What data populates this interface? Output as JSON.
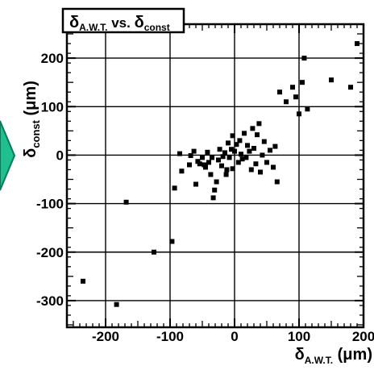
{
  "chart_data": {
    "type": "scatter",
    "title": {
      "main": "δ",
      "main_sub": "A.W.T.",
      "mid": " vs. ",
      "tail": "δ",
      "tail_sub": "const"
    },
    "xlabel": {
      "sym": "δ",
      "sub": "A.W.T.",
      "unit": " (μm)"
    },
    "ylabel": {
      "sym": "δ",
      "sub": "const",
      "unit": " (μm)"
    },
    "xlim": [
      -260,
      200
    ],
    "ylim": [
      -355,
      270
    ],
    "x_ticks": [
      "-200",
      "-100",
      "0",
      "100",
      "200"
    ],
    "x_tick_values": [
      -200,
      -100,
      0,
      100,
      200
    ],
    "y_ticks": [
      "200",
      "100",
      "0",
      "-100",
      "-200",
      "-300"
    ],
    "y_tick_values": [
      200,
      100,
      0,
      -100,
      -200,
      -300
    ],
    "grid": true,
    "legend": "none",
    "marker_color": "#000000",
    "points": [
      [
        -235,
        -260
      ],
      [
        -183,
        -308
      ],
      [
        -168,
        -97
      ],
      [
        -125,
        -200
      ],
      [
        -97,
        -178
      ],
      [
        -93,
        -68
      ],
      [
        -82,
        -33
      ],
      [
        -85,
        3
      ],
      [
        -70,
        -20
      ],
      [
        -68,
        -1
      ],
      [
        -63,
        8
      ],
      [
        -60,
        -60
      ],
      [
        -57,
        -13
      ],
      [
        -54,
        -18
      ],
      [
        -50,
        -5
      ],
      [
        -45,
        -25
      ],
      [
        -42,
        6
      ],
      [
        -40,
        -15
      ],
      [
        -37,
        -40
      ],
      [
        -35,
        -5
      ],
      [
        -33,
        -88
      ],
      [
        -31,
        -72
      ],
      [
        -28,
        -55
      ],
      [
        -25,
        -10
      ],
      [
        -23,
        12
      ],
      [
        -20,
        -22
      ],
      [
        -18,
        -3
      ],
      [
        -15,
        5
      ],
      [
        -12,
        -30
      ],
      [
        -10,
        25
      ],
      [
        -8,
        -5
      ],
      [
        -5,
        12
      ],
      [
        -3,
        -28
      ],
      [
        0,
        8
      ],
      [
        3,
        22
      ],
      [
        6,
        -15
      ],
      [
        8,
        30
      ],
      [
        10,
        2
      ],
      [
        12,
        -8
      ],
      [
        15,
        45
      ],
      [
        18,
        -5
      ],
      [
        20,
        20
      ],
      [
        23,
        8
      ],
      [
        26,
        -30
      ],
      [
        30,
        14
      ],
      [
        33,
        -18
      ],
      [
        35,
        42
      ],
      [
        38,
        65
      ],
      [
        40,
        -35
      ],
      [
        43,
        0
      ],
      [
        46,
        28
      ],
      [
        50,
        -15
      ],
      [
        55,
        10
      ],
      [
        60,
        -25
      ],
      [
        63,
        18
      ],
      [
        66,
        -55
      ],
      [
        70,
        130
      ],
      [
        80,
        110
      ],
      [
        90,
        140
      ],
      [
        95,
        120
      ],
      [
        100,
        85
      ],
      [
        105,
        150
      ],
      [
        108,
        200
      ],
      [
        113,
        95
      ],
      [
        150,
        155
      ],
      [
        180,
        140
      ],
      [
        190,
        230
      ],
      [
        -47,
        -20
      ],
      [
        -13,
        -40
      ],
      [
        28,
        55
      ],
      [
        -3,
        40
      ]
    ]
  },
  "decor": {
    "arrow_color": "#1fbf8f",
    "arrow_stroke": "#0a7a5a"
  }
}
